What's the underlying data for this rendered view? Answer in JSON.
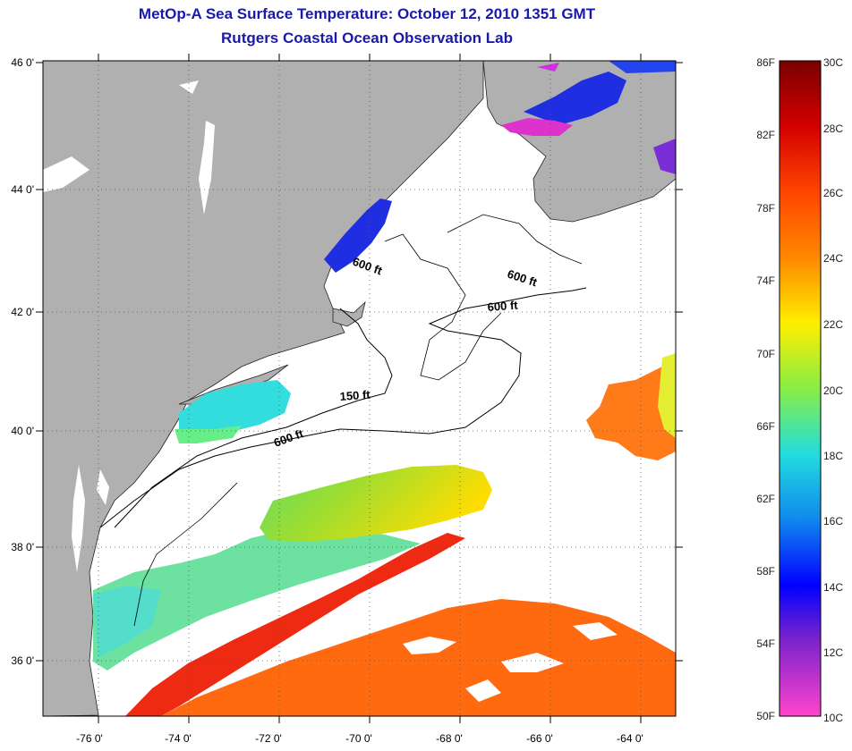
{
  "title": "MetOp-A Sea Surface Temperature:  October 12, 2010 1351 GMT",
  "subtitle": "Rutgers Coastal Ocean Observation Lab",
  "map": {
    "lon_range": [
      -77,
      -63
    ],
    "lat_range": [
      35,
      46
    ],
    "x_ticks": [
      "-76 0'",
      "-74 0'",
      "-72 0'",
      "-70 0'",
      "-68 0'",
      "-66 0'",
      "-64 0'"
    ],
    "y_ticks": [
      "46 0'",
      "44 0'",
      "42 0'",
      "40 0'",
      "38 0'",
      "36 0'"
    ],
    "contours": [
      {
        "label": "600 ft"
      },
      {
        "label": "600 ft"
      },
      {
        "label": "600 ft"
      },
      {
        "label": "150 ft"
      },
      {
        "label": "600 ft"
      }
    ],
    "colors": {
      "land": "#b0b0b0",
      "ocean_nodata": "#ffffff",
      "grid": "#555555"
    }
  },
  "colorbar": {
    "fahrenheit_labels": [
      "86F",
      "82F",
      "78F",
      "74F",
      "70F",
      "66F",
      "62F",
      "58F",
      "54F",
      "50F"
    ],
    "celsius_labels": [
      "30C",
      "28C",
      "26C",
      "24C",
      "22C",
      "20C",
      "18C",
      "16C",
      "14C",
      "12C",
      "10C"
    ],
    "range_c": [
      10,
      30
    ]
  }
}
